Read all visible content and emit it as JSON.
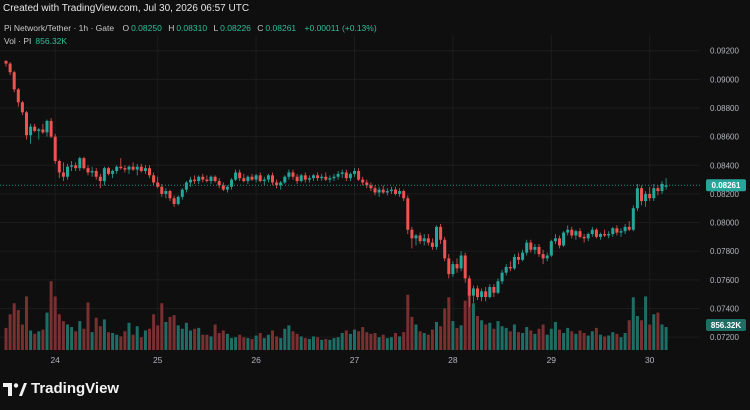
{
  "header": {
    "created_text": "Created with TradingView.com, Jul 30, 2026 06:57 UTC"
  },
  "legend": {
    "symbol": "Pi Network/Tether · 1h · Gate",
    "o_label": "O",
    "o_value": "0.08250",
    "h_label": "H",
    "h_value": "0.08310",
    "l_label": "L",
    "l_value": "0.08226",
    "c_label": "C",
    "c_value": "0.08261",
    "change": "+0.00011 (+0.13%)",
    "vol_label": "Vol · PI",
    "vol_value": "856.32K"
  },
  "brand": {
    "name": "TradingView"
  },
  "colors": {
    "background": "#0f0f0f",
    "up": "#26a69a",
    "down": "#ef5350",
    "up_volume": "#1e6e66",
    "down_volume": "#7a2f30",
    "price_label_bg": "#26a69a",
    "grid": "#1c1c1c",
    "axis_text": "#b2b5be"
  },
  "chart_data": {
    "type": "candlestick",
    "y_axis": {
      "ticks": [
        "0.09200",
        "0.09000",
        "0.08800",
        "0.08600",
        "0.08400",
        "0.08200",
        "0.08000",
        "0.07800",
        "0.07600",
        "0.07400",
        "0.07200"
      ],
      "ylim": [
        0.0718,
        0.0924
      ],
      "current_price_label": "0.08261",
      "current_price": 0.08261,
      "volume_label": "856.32K"
    },
    "x_axis": {
      "ticks": [
        "24",
        "25",
        "26",
        "27",
        "28",
        "29",
        "30"
      ],
      "tick_candle_index": [
        12,
        37,
        61,
        85,
        109,
        133,
        157
      ]
    },
    "grid": true,
    "candles": [
      [
        0.0913,
        0.0913,
        0.0909,
        0.0911,
        0.26
      ],
      [
        0.0911,
        0.0912,
        0.0903,
        0.0905,
        0.42
      ],
      [
        0.0905,
        0.0906,
        0.0891,
        0.0893,
        0.55
      ],
      [
        0.0893,
        0.0894,
        0.0881,
        0.0884,
        0.47
      ],
      [
        0.0884,
        0.0885,
        0.0875,
        0.0877,
        0.3
      ],
      [
        0.0877,
        0.0878,
        0.0858,
        0.0861,
        0.63
      ],
      [
        0.0861,
        0.0869,
        0.0855,
        0.0867,
        0.23
      ],
      [
        0.0867,
        0.0869,
        0.0863,
        0.0864,
        0.19
      ],
      [
        0.0864,
        0.0866,
        0.0858,
        0.0865,
        0.22
      ],
      [
        0.0865,
        0.0869,
        0.0862,
        0.0863,
        0.24
      ],
      [
        0.0863,
        0.0872,
        0.086,
        0.0871,
        0.44
      ],
      [
        0.0871,
        0.0873,
        0.0859,
        0.086,
        0.81
      ],
      [
        0.086,
        0.0862,
        0.0841,
        0.0843,
        0.63
      ],
      [
        0.0843,
        0.0844,
        0.0831,
        0.0835,
        0.42
      ],
      [
        0.0835,
        0.0842,
        0.0829,
        0.0832,
        0.34
      ],
      [
        0.0832,
        0.0841,
        0.083,
        0.0839,
        0.3
      ],
      [
        0.0839,
        0.0843,
        0.0836,
        0.084,
        0.27
      ],
      [
        0.084,
        0.0842,
        0.0836,
        0.0838,
        0.22
      ],
      [
        0.0838,
        0.0846,
        0.0836,
        0.0845,
        0.34
      ],
      [
        0.0845,
        0.0846,
        0.0837,
        0.0838,
        0.25
      ],
      [
        0.0838,
        0.084,
        0.0833,
        0.0835,
        0.56
      ],
      [
        0.0835,
        0.0839,
        0.0832,
        0.0836,
        0.21
      ],
      [
        0.0836,
        0.0838,
        0.083,
        0.0832,
        0.38
      ],
      [
        0.0832,
        0.0834,
        0.0824,
        0.0829,
        0.28
      ],
      [
        0.0829,
        0.0839,
        0.0826,
        0.0838,
        0.36
      ],
      [
        0.0838,
        0.0839,
        0.0833,
        0.0834,
        0.21
      ],
      [
        0.0834,
        0.0837,
        0.0831,
        0.0836,
        0.2
      ],
      [
        0.0836,
        0.084,
        0.0834,
        0.0839,
        0.18
      ],
      [
        0.0839,
        0.0845,
        0.0837,
        0.0838,
        0.16
      ],
      [
        0.0838,
        0.084,
        0.0835,
        0.0837,
        0.22
      ],
      [
        0.0837,
        0.084,
        0.0834,
        0.0839,
        0.32
      ],
      [
        0.0839,
        0.0842,
        0.0836,
        0.0837,
        0.18
      ],
      [
        0.0837,
        0.0841,
        0.0833,
        0.0839,
        0.28
      ],
      [
        0.0839,
        0.0841,
        0.0835,
        0.0836,
        0.15
      ],
      [
        0.0836,
        0.084,
        0.0834,
        0.0838,
        0.23
      ],
      [
        0.0838,
        0.084,
        0.0831,
        0.0833,
        0.25
      ],
      [
        0.0833,
        0.0835,
        0.0826,
        0.0828,
        0.42
      ],
      [
        0.0828,
        0.0832,
        0.0824,
        0.0825,
        0.29
      ],
      [
        0.0825,
        0.0827,
        0.0818,
        0.082,
        0.55
      ],
      [
        0.082,
        0.0824,
        0.0817,
        0.0822,
        0.33
      ],
      [
        0.0822,
        0.0823,
        0.0815,
        0.0817,
        0.39
      ],
      [
        0.0817,
        0.0819,
        0.0811,
        0.0813,
        0.41
      ],
      [
        0.0813,
        0.0819,
        0.0812,
        0.0818,
        0.29
      ],
      [
        0.0818,
        0.0824,
        0.0816,
        0.0823,
        0.25
      ],
      [
        0.0823,
        0.0829,
        0.0821,
        0.0828,
        0.32
      ],
      [
        0.0828,
        0.0832,
        0.0825,
        0.083,
        0.23
      ],
      [
        0.083,
        0.0833,
        0.0827,
        0.0829,
        0.25
      ],
      [
        0.0829,
        0.0833,
        0.0827,
        0.0832,
        0.26
      ],
      [
        0.0832,
        0.0834,
        0.0828,
        0.083,
        0.18
      ],
      [
        0.083,
        0.0833,
        0.0828,
        0.0829,
        0.18
      ],
      [
        0.0829,
        0.0833,
        0.0827,
        0.0832,
        0.16
      ],
      [
        0.0832,
        0.0833,
        0.0828,
        0.0829,
        0.3
      ],
      [
        0.0829,
        0.0831,
        0.0824,
        0.0826,
        0.2
      ],
      [
        0.0826,
        0.0828,
        0.0822,
        0.0823,
        0.23
      ],
      [
        0.0823,
        0.0826,
        0.0821,
        0.0825,
        0.19
      ],
      [
        0.0825,
        0.0831,
        0.0823,
        0.083,
        0.14
      ],
      [
        0.083,
        0.0837,
        0.0829,
        0.0835,
        0.15
      ],
      [
        0.0835,
        0.0837,
        0.0829,
        0.0831,
        0.18
      ],
      [
        0.0831,
        0.0834,
        0.0828,
        0.0829,
        0.15
      ],
      [
        0.0829,
        0.0833,
        0.0827,
        0.0832,
        0.14
      ],
      [
        0.0832,
        0.0834,
        0.0829,
        0.083,
        0.13
      ],
      [
        0.083,
        0.0834,
        0.0828,
        0.0833,
        0.17
      ],
      [
        0.0833,
        0.0835,
        0.0828,
        0.0829,
        0.2
      ],
      [
        0.0829,
        0.0832,
        0.0826,
        0.083,
        0.14
      ],
      [
        0.083,
        0.0834,
        0.0828,
        0.0833,
        0.18
      ],
      [
        0.0833,
        0.0835,
        0.0826,
        0.0828,
        0.23
      ],
      [
        0.0828,
        0.083,
        0.0824,
        0.0826,
        0.16
      ],
      [
        0.0826,
        0.0829,
        0.0823,
        0.0828,
        0.14
      ],
      [
        0.0828,
        0.0833,
        0.0827,
        0.0832,
        0.25
      ],
      [
        0.0832,
        0.0837,
        0.083,
        0.0835,
        0.29
      ],
      [
        0.0835,
        0.0837,
        0.083,
        0.0832,
        0.22
      ],
      [
        0.0832,
        0.0834,
        0.0827,
        0.0829,
        0.19
      ],
      [
        0.0829,
        0.0834,
        0.0828,
        0.0833,
        0.16
      ],
      [
        0.0833,
        0.0835,
        0.0828,
        0.083,
        0.14
      ],
      [
        0.083,
        0.0833,
        0.0828,
        0.0831,
        0.13
      ],
      [
        0.0831,
        0.0834,
        0.0829,
        0.0833,
        0.16
      ],
      [
        0.0833,
        0.0835,
        0.0829,
        0.0831,
        0.15
      ],
      [
        0.0831,
        0.0834,
        0.0829,
        0.0832,
        0.12
      ],
      [
        0.0832,
        0.0835,
        0.0829,
        0.083,
        0.13
      ],
      [
        0.083,
        0.0833,
        0.0828,
        0.0831,
        0.12
      ],
      [
        0.0831,
        0.0834,
        0.0829,
        0.0832,
        0.14
      ],
      [
        0.0832,
        0.0836,
        0.083,
        0.0834,
        0.15
      ],
      [
        0.0834,
        0.0837,
        0.0831,
        0.0835,
        0.2
      ],
      [
        0.0835,
        0.0837,
        0.0829,
        0.0831,
        0.23
      ],
      [
        0.0831,
        0.0835,
        0.0829,
        0.0834,
        0.19
      ],
      [
        0.0834,
        0.0838,
        0.0832,
        0.0836,
        0.24
      ],
      [
        0.0836,
        0.0838,
        0.0829,
        0.083,
        0.22
      ],
      [
        0.083,
        0.0832,
        0.0826,
        0.0828,
        0.27
      ],
      [
        0.0828,
        0.083,
        0.0824,
        0.0826,
        0.21
      ],
      [
        0.0826,
        0.0828,
        0.0822,
        0.0824,
        0.19
      ],
      [
        0.0824,
        0.0826,
        0.0819,
        0.0821,
        0.2
      ],
      [
        0.0821,
        0.0825,
        0.0818,
        0.0823,
        0.15
      ],
      [
        0.0823,
        0.0826,
        0.082,
        0.0821,
        0.18
      ],
      [
        0.0821,
        0.0824,
        0.0819,
        0.0822,
        0.14
      ],
      [
        0.0822,
        0.0825,
        0.082,
        0.0823,
        0.15
      ],
      [
        0.0823,
        0.0825,
        0.0819,
        0.082,
        0.2
      ],
      [
        0.082,
        0.0824,
        0.0818,
        0.0822,
        0.16
      ],
      [
        0.0822,
        0.0823,
        0.0815,
        0.0817,
        0.21
      ],
      [
        0.0817,
        0.0819,
        0.0792,
        0.0795,
        0.65
      ],
      [
        0.0795,
        0.0797,
        0.0782,
        0.0789,
        0.39
      ],
      [
        0.0789,
        0.0792,
        0.0784,
        0.0791,
        0.3
      ],
      [
        0.0791,
        0.0793,
        0.0785,
        0.0787,
        0.22
      ],
      [
        0.0787,
        0.0792,
        0.0784,
        0.0789,
        0.2
      ],
      [
        0.0789,
        0.0792,
        0.0784,
        0.0786,
        0.18
      ],
      [
        0.0786,
        0.0789,
        0.0781,
        0.0783,
        0.24
      ],
      [
        0.0783,
        0.0798,
        0.0781,
        0.0797,
        0.33
      ],
      [
        0.0797,
        0.0799,
        0.0785,
        0.0788,
        0.28
      ],
      [
        0.0788,
        0.079,
        0.0773,
        0.0775,
        0.49
      ],
      [
        0.0775,
        0.0778,
        0.0761,
        0.0764,
        0.62
      ],
      [
        0.0764,
        0.0773,
        0.0762,
        0.0771,
        0.34
      ],
      [
        0.0771,
        0.0775,
        0.0765,
        0.0768,
        0.26
      ],
      [
        0.0768,
        0.078,
        0.0766,
        0.0777,
        0.29
      ],
      [
        0.0777,
        0.0779,
        0.0758,
        0.0761,
        0.58
      ],
      [
        0.0761,
        0.0763,
        0.0741,
        0.0749,
        0.81
      ],
      [
        0.0749,
        0.0756,
        0.0744,
        0.0754,
        0.55
      ],
      [
        0.0754,
        0.0756,
        0.0746,
        0.0748,
        0.4
      ],
      [
        0.0748,
        0.0754,
        0.0745,
        0.0752,
        0.35
      ],
      [
        0.0752,
        0.0755,
        0.0745,
        0.0748,
        0.3
      ],
      [
        0.0748,
        0.0757,
        0.0747,
        0.0755,
        0.32
      ],
      [
        0.0755,
        0.0757,
        0.0748,
        0.0751,
        0.25
      ],
      [
        0.0751,
        0.0761,
        0.075,
        0.0759,
        0.34
      ],
      [
        0.0759,
        0.0767,
        0.0757,
        0.0765,
        0.28
      ],
      [
        0.0765,
        0.0771,
        0.0763,
        0.0769,
        0.26
      ],
      [
        0.0769,
        0.0773,
        0.0766,
        0.0768,
        0.22
      ],
      [
        0.0768,
        0.0778,
        0.0767,
        0.0776,
        0.3
      ],
      [
        0.0776,
        0.0779,
        0.0771,
        0.0774,
        0.21
      ],
      [
        0.0774,
        0.0781,
        0.0773,
        0.0779,
        0.2
      ],
      [
        0.0779,
        0.0788,
        0.0777,
        0.0786,
        0.27
      ],
      [
        0.0786,
        0.0788,
        0.0779,
        0.0781,
        0.23
      ],
      [
        0.0781,
        0.0785,
        0.0778,
        0.0783,
        0.19
      ],
      [
        0.0783,
        0.0785,
        0.0776,
        0.0778,
        0.25
      ],
      [
        0.0778,
        0.0781,
        0.0771,
        0.0775,
        0.3
      ],
      [
        0.0775,
        0.0779,
        0.0773,
        0.0777,
        0.18
      ],
      [
        0.0777,
        0.0788,
        0.0776,
        0.0787,
        0.25
      ],
      [
        0.0787,
        0.0792,
        0.0785,
        0.0789,
        0.33
      ],
      [
        0.0789,
        0.0791,
        0.0782,
        0.0784,
        0.24
      ],
      [
        0.0784,
        0.0794,
        0.0783,
        0.0793,
        0.2
      ],
      [
        0.0793,
        0.0798,
        0.0791,
        0.0795,
        0.26
      ],
      [
        0.0795,
        0.0797,
        0.0789,
        0.0791,
        0.22
      ],
      [
        0.0791,
        0.0795,
        0.0788,
        0.0794,
        0.19
      ],
      [
        0.0794,
        0.0796,
        0.0789,
        0.079,
        0.23
      ],
      [
        0.079,
        0.0792,
        0.0786,
        0.0789,
        0.2
      ],
      [
        0.0789,
        0.0793,
        0.0787,
        0.0792,
        0.17
      ],
      [
        0.0792,
        0.0797,
        0.079,
        0.0795,
        0.22
      ],
      [
        0.0795,
        0.0796,
        0.0789,
        0.079,
        0.26
      ],
      [
        0.079,
        0.0793,
        0.0788,
        0.0792,
        0.18
      ],
      [
        0.0792,
        0.0795,
        0.079,
        0.0791,
        0.16
      ],
      [
        0.0791,
        0.0794,
        0.0789,
        0.0792,
        0.17
      ],
      [
        0.0792,
        0.0797,
        0.079,
        0.0796,
        0.21
      ],
      [
        0.0796,
        0.0798,
        0.0791,
        0.0793,
        0.19
      ],
      [
        0.0793,
        0.0796,
        0.079,
        0.0794,
        0.15
      ],
      [
        0.0794,
        0.0799,
        0.0792,
        0.0797,
        0.2
      ],
      [
        0.0797,
        0.0801,
        0.0794,
        0.0795,
        0.35
      ],
      [
        0.0795,
        0.0812,
        0.0794,
        0.081,
        0.62
      ],
      [
        0.081,
        0.0827,
        0.0808,
        0.0824,
        0.4
      ],
      [
        0.0824,
        0.0826,
        0.0812,
        0.0815,
        0.35
      ],
      [
        0.0815,
        0.0822,
        0.0811,
        0.082,
        0.63
      ],
      [
        0.082,
        0.0825,
        0.0815,
        0.0817,
        0.3
      ],
      [
        0.0817,
        0.0827,
        0.0815,
        0.0824,
        0.42
      ],
      [
        0.0824,
        0.0826,
        0.0819,
        0.0822,
        0.44
      ],
      [
        0.0822,
        0.0829,
        0.082,
        0.0827,
        0.3
      ],
      [
        0.0825,
        0.0831,
        0.0823,
        0.0826,
        0.27
      ]
    ]
  }
}
